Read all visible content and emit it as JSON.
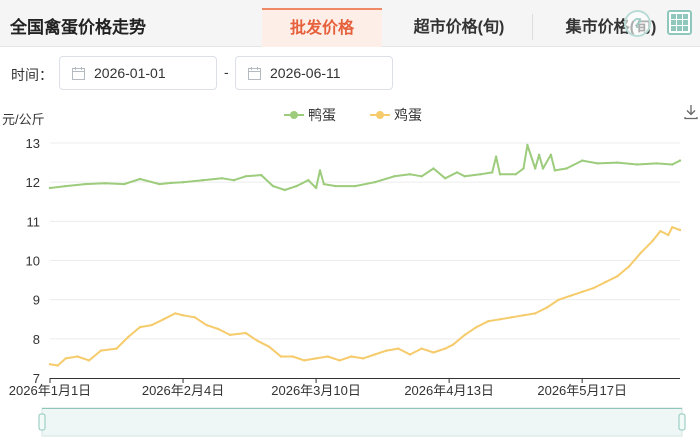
{
  "header": {
    "title": "全国禽蛋价格走势",
    "tabs": [
      {
        "label": "批发价格",
        "active": true
      },
      {
        "label": "超市价格(旬)",
        "active": false
      },
      {
        "label": "集市价格(旬)",
        "active": false
      }
    ],
    "help_icon": "?",
    "accent_color": "#e5603b"
  },
  "filter": {
    "label": "时间：",
    "start_date": "2026-01-01",
    "separator": "-",
    "end_date": "2026-06-11"
  },
  "icons": [
    "help-icon",
    "grid-view-icon",
    "calendar-icon",
    "download-icon"
  ],
  "chart_data": {
    "type": "line",
    "ylabel": "元/公斤",
    "ylim": [
      7,
      13
    ],
    "yticks": [
      7,
      8,
      9,
      10,
      11,
      12,
      13
    ],
    "xlim": [
      "2026-01-01",
      "2026-06-11"
    ],
    "xticks": [
      {
        "date": "2026-01-01",
        "label": "2026年1月1日"
      },
      {
        "date": "2026-02-04",
        "label": "2026年2月4日"
      },
      {
        "date": "2026-03-10",
        "label": "2026年3月10日"
      },
      {
        "date": "2026-04-13",
        "label": "2026年4月13日"
      },
      {
        "date": "2026-05-17",
        "label": "2026年5月17日"
      }
    ],
    "grid": true,
    "legend_position": "top-center",
    "series": [
      {
        "name": "鸭蛋",
        "color": "#9ccc7c",
        "points": [
          [
            "2026-01-01",
            11.85
          ],
          [
            "2026-01-05",
            11.9
          ],
          [
            "2026-01-10",
            11.95
          ],
          [
            "2026-01-15",
            11.97
          ],
          [
            "2026-01-20",
            11.95
          ],
          [
            "2026-01-24",
            12.08
          ],
          [
            "2026-01-29",
            11.95
          ],
          [
            "2026-02-01",
            11.98
          ],
          [
            "2026-02-04",
            12.0
          ],
          [
            "2026-02-09",
            12.05
          ],
          [
            "2026-02-14",
            12.1
          ],
          [
            "2026-02-17",
            12.05
          ],
          [
            "2026-02-20",
            12.15
          ],
          [
            "2026-02-24",
            12.18
          ],
          [
            "2026-02-27",
            11.9
          ],
          [
            "2026-03-02",
            11.8
          ],
          [
            "2026-03-05",
            11.9
          ],
          [
            "2026-03-08",
            12.05
          ],
          [
            "2026-03-10",
            11.85
          ],
          [
            "2026-03-11",
            12.3
          ],
          [
            "2026-03-12",
            11.95
          ],
          [
            "2026-03-15",
            11.9
          ],
          [
            "2026-03-20",
            11.9
          ],
          [
            "2026-03-25",
            12.0
          ],
          [
            "2026-03-30",
            12.15
          ],
          [
            "2026-04-03",
            12.2
          ],
          [
            "2026-04-06",
            12.15
          ],
          [
            "2026-04-09",
            12.35
          ],
          [
            "2026-04-12",
            12.1
          ],
          [
            "2026-04-15",
            12.25
          ],
          [
            "2026-04-17",
            12.15
          ],
          [
            "2026-04-21",
            12.2
          ],
          [
            "2026-04-24",
            12.25
          ],
          [
            "2026-04-25",
            12.65
          ],
          [
            "2026-04-26",
            12.2
          ],
          [
            "2026-04-30",
            12.2
          ],
          [
            "2026-05-02",
            12.35
          ],
          [
            "2026-05-03",
            12.95
          ],
          [
            "2026-05-05",
            12.35
          ],
          [
            "2026-05-06",
            12.7
          ],
          [
            "2026-05-07",
            12.35
          ],
          [
            "2026-05-09",
            12.7
          ],
          [
            "2026-05-10",
            12.3
          ],
          [
            "2026-05-13",
            12.35
          ],
          [
            "2026-05-17",
            12.55
          ],
          [
            "2026-05-21",
            12.48
          ],
          [
            "2026-05-26",
            12.5
          ],
          [
            "2026-05-31",
            12.45
          ],
          [
            "2026-06-05",
            12.48
          ],
          [
            "2026-06-09",
            12.45
          ],
          [
            "2026-06-11",
            12.55
          ]
        ]
      },
      {
        "name": "鸡蛋",
        "color": "#f5cb6b",
        "points": [
          [
            "2026-01-01",
            7.35
          ],
          [
            "2026-01-03",
            7.32
          ],
          [
            "2026-01-05",
            7.5
          ],
          [
            "2026-01-08",
            7.55
          ],
          [
            "2026-01-11",
            7.45
          ],
          [
            "2026-01-14",
            7.7
          ],
          [
            "2026-01-18",
            7.75
          ],
          [
            "2026-01-21",
            8.05
          ],
          [
            "2026-01-24",
            8.3
          ],
          [
            "2026-01-27",
            8.35
          ],
          [
            "2026-01-30",
            8.5
          ],
          [
            "2026-02-02",
            8.65
          ],
          [
            "2026-02-04",
            8.6
          ],
          [
            "2026-02-07",
            8.55
          ],
          [
            "2026-02-10",
            8.35
          ],
          [
            "2026-02-13",
            8.25
          ],
          [
            "2026-02-16",
            8.1
          ],
          [
            "2026-02-20",
            8.15
          ],
          [
            "2026-02-23",
            7.95
          ],
          [
            "2026-02-26",
            7.8
          ],
          [
            "2026-03-01",
            7.55
          ],
          [
            "2026-03-04",
            7.55
          ],
          [
            "2026-03-07",
            7.45
          ],
          [
            "2026-03-10",
            7.5
          ],
          [
            "2026-03-13",
            7.55
          ],
          [
            "2026-03-16",
            7.45
          ],
          [
            "2026-03-19",
            7.55
          ],
          [
            "2026-03-22",
            7.5
          ],
          [
            "2026-03-25",
            7.6
          ],
          [
            "2026-03-28",
            7.7
          ],
          [
            "2026-03-31",
            7.75
          ],
          [
            "2026-04-03",
            7.6
          ],
          [
            "2026-04-06",
            7.75
          ],
          [
            "2026-04-09",
            7.65
          ],
          [
            "2026-04-12",
            7.75
          ],
          [
            "2026-04-14",
            7.85
          ],
          [
            "2026-04-17",
            8.1
          ],
          [
            "2026-04-20",
            8.3
          ],
          [
            "2026-04-23",
            8.45
          ],
          [
            "2026-04-26",
            8.5
          ],
          [
            "2026-04-29",
            8.55
          ],
          [
            "2026-05-02",
            8.6
          ],
          [
            "2026-05-05",
            8.65
          ],
          [
            "2026-05-08",
            8.8
          ],
          [
            "2026-05-11",
            9.0
          ],
          [
            "2026-05-14",
            9.1
          ],
          [
            "2026-05-17",
            9.2
          ],
          [
            "2026-05-20",
            9.3
          ],
          [
            "2026-05-23",
            9.45
          ],
          [
            "2026-05-26",
            9.6
          ],
          [
            "2026-05-29",
            9.85
          ],
          [
            "2026-06-01",
            10.2
          ],
          [
            "2026-06-04",
            10.5
          ],
          [
            "2026-06-06",
            10.75
          ],
          [
            "2026-06-08",
            10.65
          ],
          [
            "2026-06-09",
            10.85
          ],
          [
            "2026-06-11",
            10.78
          ]
        ]
      }
    ]
  }
}
